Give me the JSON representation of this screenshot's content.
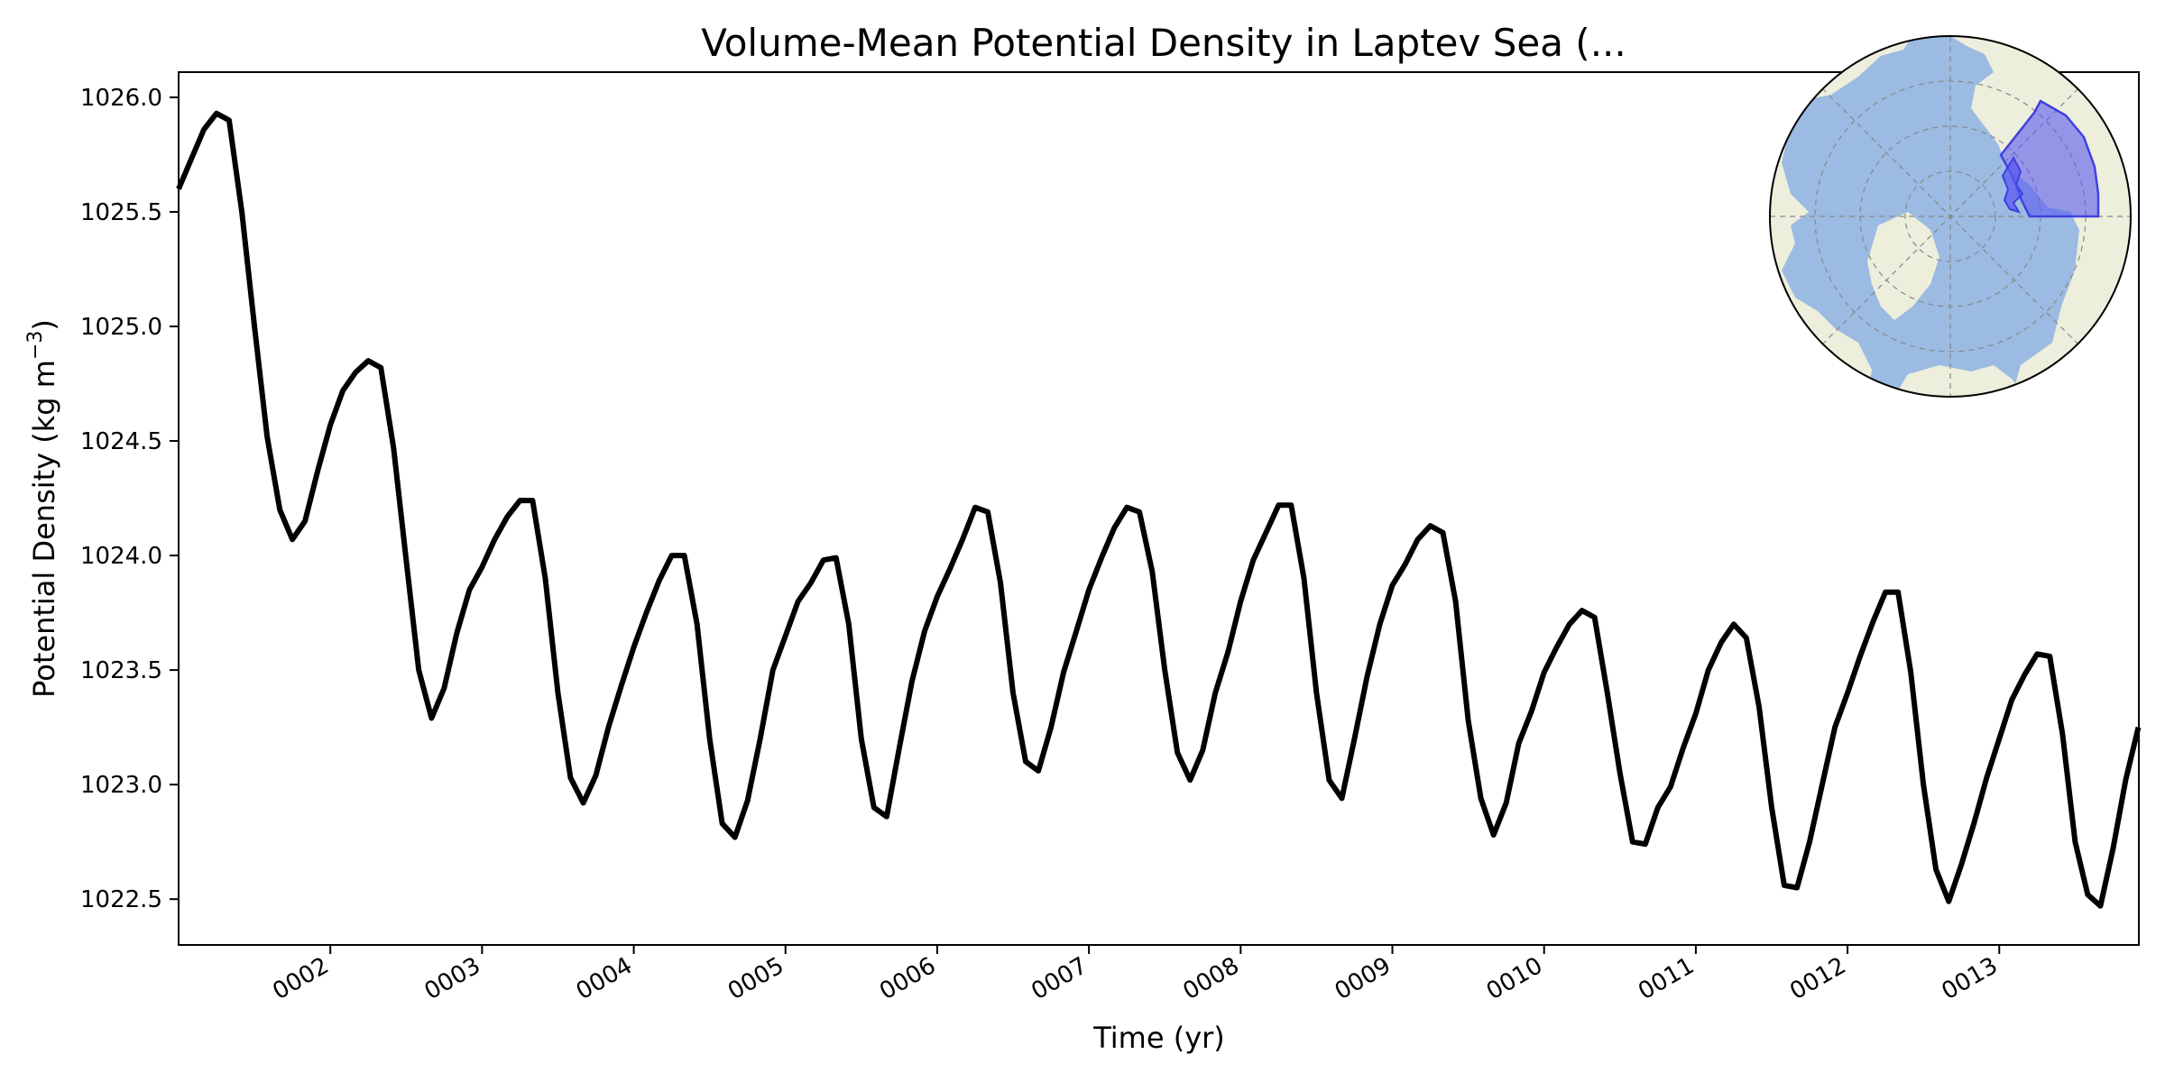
{
  "chart_data": {
    "type": "line",
    "title": "Volume-Mean Potential Density in Laptev Sea (...",
    "xlabel": "Time (yr)",
    "ylabel_main": "Potential Density (kg m",
    "ylabel_sup": "−3",
    "ylabel_close": ")",
    "xlim": [
      1.0,
      13.92
    ],
    "ylim": [
      1022.3,
      1026.11
    ],
    "grid": false,
    "xticks": [
      {
        "value": 2,
        "label": "0002"
      },
      {
        "value": 3,
        "label": "0003"
      },
      {
        "value": 4,
        "label": "0004"
      },
      {
        "value": 5,
        "label": "0005"
      },
      {
        "value": 6,
        "label": "0006"
      },
      {
        "value": 7,
        "label": "0007"
      },
      {
        "value": 8,
        "label": "0008"
      },
      {
        "value": 9,
        "label": "0009"
      },
      {
        "value": 10,
        "label": "0010"
      },
      {
        "value": 11,
        "label": "0011"
      },
      {
        "value": 12,
        "label": "0012"
      },
      {
        "value": 13,
        "label": "0013"
      }
    ],
    "yticks": [
      {
        "value": 1022.5,
        "label": "1022.5"
      },
      {
        "value": 1023.0,
        "label": "1023.0"
      },
      {
        "value": 1023.5,
        "label": "1023.5"
      },
      {
        "value": 1024.0,
        "label": "1024.0"
      },
      {
        "value": 1024.5,
        "label": "1024.5"
      },
      {
        "value": 1025.0,
        "label": "1025.0"
      },
      {
        "value": 1025.5,
        "label": "1025.5"
      },
      {
        "value": 1026.0,
        "label": "1026.0"
      }
    ],
    "series": [
      {
        "color": "#000000",
        "x": [
          1.0,
          1.083,
          1.167,
          1.25,
          1.333,
          1.417,
          1.5,
          1.583,
          1.667,
          1.75,
          1.833,
          1.917,
          2.0,
          2.083,
          2.167,
          2.25,
          2.333,
          2.417,
          2.5,
          2.583,
          2.667,
          2.75,
          2.833,
          2.917,
          3.0,
          3.083,
          3.167,
          3.25,
          3.333,
          3.417,
          3.5,
          3.583,
          3.667,
          3.75,
          3.833,
          3.917,
          4.0,
          4.083,
          4.167,
          4.25,
          4.333,
          4.417,
          4.5,
          4.583,
          4.667,
          4.75,
          4.833,
          4.917,
          5.0,
          5.083,
          5.167,
          5.25,
          5.333,
          5.417,
          5.5,
          5.583,
          5.667,
          5.75,
          5.833,
          5.917,
          6.0,
          6.083,
          6.167,
          6.25,
          6.333,
          6.417,
          6.5,
          6.583,
          6.667,
          6.75,
          6.833,
          6.917,
          7.0,
          7.083,
          7.167,
          7.25,
          7.333,
          7.417,
          7.5,
          7.583,
          7.667,
          7.75,
          7.833,
          7.917,
          8.0,
          8.083,
          8.167,
          8.25,
          8.333,
          8.417,
          8.5,
          8.583,
          8.667,
          8.75,
          8.833,
          8.917,
          9.0,
          9.083,
          9.167,
          9.25,
          9.333,
          9.417,
          9.5,
          9.583,
          9.667,
          9.75,
          9.833,
          9.917,
          10.0,
          10.083,
          10.167,
          10.25,
          10.333,
          10.417,
          10.5,
          10.583,
          10.667,
          10.75,
          10.833,
          10.917,
          11.0,
          11.083,
          11.167,
          11.25,
          11.333,
          11.417,
          11.5,
          11.583,
          11.667,
          11.75,
          11.833,
          11.917,
          12.0,
          12.083,
          12.167,
          12.25,
          12.333,
          12.417,
          12.5,
          12.583,
          12.667,
          12.75,
          12.833,
          12.917,
          13.0,
          13.083,
          13.167,
          13.25,
          13.333,
          13.417,
          13.5,
          13.583,
          13.667,
          13.75,
          13.833,
          13.917
        ],
        "y": [
          1025.6,
          1025.73,
          1025.86,
          1025.93,
          1025.9,
          1025.5,
          1025.0,
          1024.52,
          1024.2,
          1024.07,
          1024.15,
          1024.37,
          1024.57,
          1024.72,
          1024.8,
          1024.85,
          1024.82,
          1024.47,
          1023.98,
          1023.5,
          1023.29,
          1023.42,
          1023.66,
          1023.85,
          1023.95,
          1024.07,
          1024.17,
          1024.24,
          1024.24,
          1023.9,
          1023.4,
          1023.03,
          1022.92,
          1023.04,
          1023.25,
          1023.43,
          1023.6,
          1023.75,
          1023.89,
          1024.0,
          1024.0,
          1023.7,
          1023.2,
          1022.83,
          1022.77,
          1022.93,
          1023.2,
          1023.5,
          1023.65,
          1023.8,
          1023.88,
          1023.98,
          1023.99,
          1023.7,
          1023.2,
          1022.9,
          1022.86,
          1023.16,
          1023.45,
          1023.67,
          1023.82,
          1023.94,
          1024.07,
          1024.21,
          1024.19,
          1023.88,
          1023.4,
          1023.1,
          1023.06,
          1023.25,
          1023.49,
          1023.67,
          1023.85,
          1023.99,
          1024.12,
          1024.21,
          1024.19,
          1023.93,
          1023.5,
          1023.14,
          1023.02,
          1023.15,
          1023.4,
          1023.58,
          1023.8,
          1023.98,
          1024.1,
          1024.22,
          1024.22,
          1023.9,
          1023.4,
          1023.02,
          1022.94,
          1023.2,
          1023.47,
          1023.7,
          1023.87,
          1023.96,
          1024.07,
          1024.13,
          1024.1,
          1023.8,
          1023.28,
          1022.94,
          1022.78,
          1022.92,
          1023.18,
          1023.32,
          1023.49,
          1023.6,
          1023.7,
          1023.76,
          1023.73,
          1023.4,
          1023.05,
          1022.75,
          1022.74,
          1022.9,
          1022.99,
          1023.16,
          1023.31,
          1023.5,
          1023.62,
          1023.7,
          1023.64,
          1023.34,
          1022.9,
          1022.56,
          1022.55,
          1022.75,
          1023.0,
          1023.25,
          1023.4,
          1023.56,
          1023.71,
          1023.84,
          1023.84,
          1023.49,
          1023.0,
          1022.63,
          1022.49,
          1022.65,
          1022.83,
          1023.03,
          1023.2,
          1023.37,
          1023.48,
          1023.57,
          1023.56,
          1023.22,
          1022.75,
          1022.52,
          1022.47,
          1022.72,
          1023.02,
          1023.25
        ]
      }
    ],
    "inset_map": {
      "projection": "north-polar-stereographic",
      "ocean_color": "#9bbbe2",
      "land_color": "#eeeedc",
      "region_fill_color": "#5a5af0",
      "region_edge_color": "#4040e0",
      "region_label": "Laptev Sea"
    }
  }
}
